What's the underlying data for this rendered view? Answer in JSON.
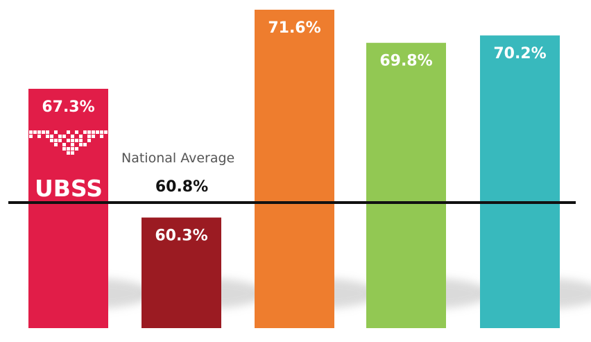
{
  "chart_data": {
    "type": "bar",
    "title": "",
    "xlabel": "",
    "ylabel": "",
    "categories": [
      "",
      "",
      "",
      "",
      ""
    ],
    "values": [
      67.3,
      60.3,
      71.6,
      69.8,
      70.2
    ],
    "labels": [
      "67.3%",
      "60.3%",
      "71.6%",
      "69.8%",
      "70.2%"
    ],
    "colors": [
      "#e11d48",
      "#9b1b22",
      "#ee7d2e",
      "#92c853",
      "#38b9bd"
    ],
    "reference_line": {
      "caption": "National Average",
      "value": 60.8,
      "label": "60.8%"
    },
    "brand": {
      "logo_text": "UBSS"
    },
    "ylim": [
      50,
      72
    ],
    "grid": false,
    "legend": "none"
  }
}
